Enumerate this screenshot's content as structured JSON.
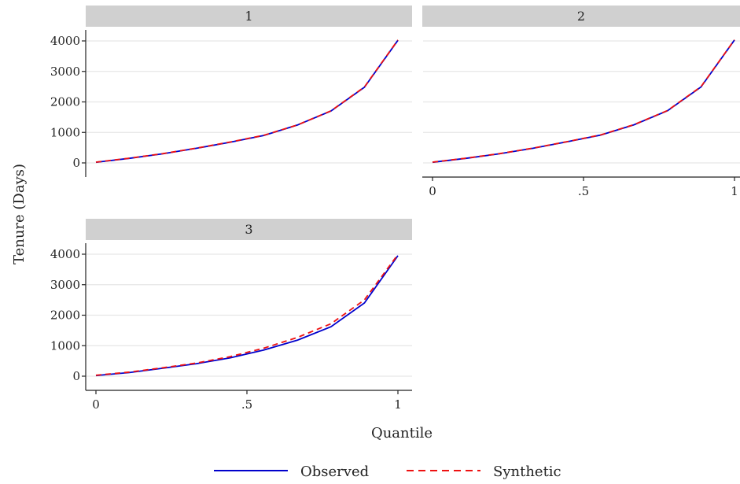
{
  "chart_data": {
    "type": "line",
    "ylabel": "Tenure (Days)",
    "xlabel": "Quantile",
    "xlim": [
      0,
      1
    ],
    "ylim": [
      0,
      4000
    ],
    "xticks": [
      {
        "value": 0,
        "label": "0"
      },
      {
        "value": 0.5,
        "label": ".5"
      },
      {
        "value": 1,
        "label": "1"
      }
    ],
    "yticks": [
      0,
      1000,
      2000,
      3000,
      4000
    ],
    "grid": "horizontal",
    "legend": {
      "position": "bottom",
      "entries": [
        {
          "label": "Observed",
          "color": "#0000cc",
          "dash": "solid"
        },
        {
          "label": "Synthetic",
          "color": "#ee1111",
          "dash": "dashed"
        }
      ]
    },
    "x": [
      0,
      0.111,
      0.222,
      0.333,
      0.444,
      0.556,
      0.667,
      0.778,
      0.889,
      1
    ],
    "panels": [
      {
        "label": "1",
        "series": [
          {
            "name": "Observed",
            "values": [
              20,
              150,
              300,
              480,
              680,
              900,
              1240,
              1700,
              2480,
              4020
            ]
          },
          {
            "name": "Synthetic",
            "values": [
              25,
              155,
              305,
              485,
              685,
              905,
              1245,
              1705,
              2490,
              4030
            ]
          }
        ]
      },
      {
        "label": "2",
        "series": [
          {
            "name": "Observed",
            "values": [
              20,
              150,
              300,
              480,
              690,
              910,
              1250,
              1710,
              2490,
              4030
            ]
          },
          {
            "name": "Synthetic",
            "values": [
              25,
              155,
              305,
              485,
              695,
              915,
              1255,
              1715,
              2500,
              4035
            ]
          }
        ]
      },
      {
        "label": "3",
        "series": [
          {
            "name": "Observed",
            "values": [
              20,
              120,
              260,
              410,
              600,
              860,
              1180,
              1620,
              2400,
              3950
            ]
          },
          {
            "name": "Synthetic",
            "values": [
              30,
              135,
              275,
              430,
              640,
              920,
              1270,
              1720,
              2500,
              3990
            ]
          }
        ]
      }
    ]
  }
}
